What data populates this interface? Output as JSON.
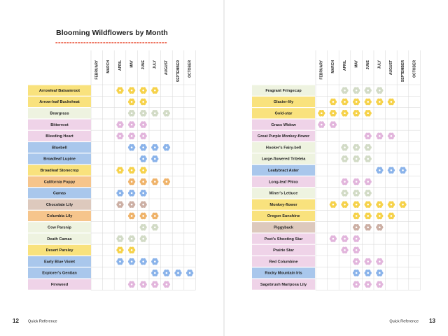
{
  "title": "Blooming Wildflowers by Month",
  "months": [
    "FEBRUARY",
    "MARCH",
    "APRIL",
    "MAY",
    "JUNE",
    "JULY",
    "AUGUST",
    "SEPTEMBER",
    "OCTOBER"
  ],
  "pages": [
    {
      "number": 12,
      "footer": "Quick Reference",
      "rows": [
        {
          "name": "Arrowleaf Balsamroot",
          "color": "#f9e27d",
          "flower_color": "#f6d24a",
          "bloom": [
            0,
            0,
            1,
            1,
            1,
            1,
            0,
            0,
            0
          ]
        },
        {
          "name": "Arrow-leaf Buckeheat",
          "color": "#f9e27d",
          "flower_color": "#f6d24a",
          "bloom": [
            0,
            0,
            0,
            1,
            1,
            0,
            0,
            0,
            0
          ]
        },
        {
          "name": "Beargrass",
          "color": "#eef3e0",
          "flower_color": "#d2dbc6",
          "bloom": [
            0,
            0,
            0,
            1,
            1,
            1,
            1,
            0,
            0
          ]
        },
        {
          "name": "Bitterroot",
          "color": "#efd3e8",
          "flower_color": "#e2b5dc",
          "bloom": [
            0,
            0,
            1,
            1,
            1,
            0,
            0,
            0,
            0
          ]
        },
        {
          "name": "Bleeding Heart",
          "color": "#efd3e8",
          "flower_color": "#e2b5dc",
          "bloom": [
            0,
            0,
            1,
            1,
            1,
            0,
            0,
            0,
            0
          ]
        },
        {
          "name": "Bluebell",
          "color": "#a9c7ec",
          "flower_color": "#8ab3ea",
          "bloom": [
            0,
            0,
            0,
            1,
            1,
            1,
            1,
            0,
            0
          ]
        },
        {
          "name": "Broadleaf Lupine",
          "color": "#a9c7ec",
          "flower_color": "#8ab3ea",
          "bloom": [
            0,
            0,
            0,
            0,
            1,
            1,
            0,
            0,
            0
          ]
        },
        {
          "name": "Broadleaf Stonecrop",
          "color": "#f9e27d",
          "flower_color": "#f6d24a",
          "bloom": [
            0,
            0,
            1,
            1,
            1,
            0,
            0,
            0,
            0
          ]
        },
        {
          "name": "California Poppy",
          "color": "#f6c58c",
          "flower_color": "#efb36a",
          "bloom": [
            0,
            0,
            0,
            1,
            1,
            1,
            1,
            0,
            0
          ]
        },
        {
          "name": "Camas",
          "color": "#a9c7ec",
          "flower_color": "#8ab3ea",
          "bloom": [
            0,
            0,
            1,
            1,
            1,
            0,
            0,
            0,
            0
          ]
        },
        {
          "name": "Chocolate Lily",
          "color": "#ddc9bd",
          "flower_color": "#ccafa4",
          "bloom": [
            0,
            0,
            1,
            1,
            1,
            0,
            0,
            0,
            0
          ]
        },
        {
          "name": "Columbia Lily",
          "color": "#f6c58c",
          "flower_color": "#efb36a",
          "bloom": [
            0,
            0,
            0,
            1,
            1,
            1,
            0,
            0,
            0
          ]
        },
        {
          "name": "Cow Parsnip",
          "color": "#eef3e0",
          "flower_color": "#d2dbc6",
          "bloom": [
            0,
            0,
            0,
            0,
            1,
            1,
            0,
            0,
            0
          ]
        },
        {
          "name": "Death Camas",
          "color": "#eef3e0",
          "flower_color": "#d2dbc6",
          "bloom": [
            0,
            0,
            1,
            1,
            1,
            0,
            0,
            0,
            0
          ]
        },
        {
          "name": "Desert Parsley",
          "color": "#f9e27d",
          "flower_color": "#f6d24a",
          "bloom": [
            0,
            0,
            1,
            1,
            0,
            0,
            0,
            0,
            0
          ]
        },
        {
          "name": "Early Blue Violet",
          "color": "#a9c7ec",
          "flower_color": "#8ab3ea",
          "bloom": [
            0,
            0,
            1,
            1,
            1,
            1,
            0,
            0,
            0
          ]
        },
        {
          "name": "Explorer's Gentian",
          "color": "#a9c7ec",
          "flower_color": "#8ab3ea",
          "bloom": [
            0,
            0,
            0,
            0,
            0,
            1,
            1,
            1,
            1
          ]
        },
        {
          "name": "Fireweed",
          "color": "#efd3e8",
          "flower_color": "#e2b5dc",
          "bloom": [
            0,
            0,
            0,
            1,
            1,
            1,
            1,
            0,
            0
          ]
        }
      ]
    },
    {
      "number": 13,
      "footer": "Quick Reference",
      "rows": [
        {
          "name": "Fragrant Fringecup",
          "color": "#eef3e0",
          "flower_color": "#d2dbc6",
          "bloom": [
            0,
            0,
            1,
            1,
            1,
            1,
            0,
            0,
            0
          ]
        },
        {
          "name": "Glacier-lily",
          "color": "#f9e27d",
          "flower_color": "#f6d24a",
          "bloom": [
            0,
            1,
            1,
            1,
            1,
            1,
            1,
            0,
            0
          ]
        },
        {
          "name": "Gold-star",
          "color": "#f9e27d",
          "flower_color": "#f6d24a",
          "bloom": [
            1,
            1,
            1,
            1,
            1,
            0,
            0,
            0,
            0
          ]
        },
        {
          "name": "Grass Widow",
          "color": "#efd3e8",
          "flower_color": "#e2b5dc",
          "bloom": [
            1,
            1,
            0,
            0,
            0,
            0,
            0,
            0,
            0
          ]
        },
        {
          "name": "Great Purple Monkey-flower",
          "color": "#efd3e8",
          "flower_color": "#e2b5dc",
          "bloom": [
            0,
            0,
            0,
            0,
            1,
            1,
            1,
            0,
            0
          ]
        },
        {
          "name": "Hooker's Fairy-bell",
          "color": "#eef3e0",
          "flower_color": "#d2dbc6",
          "bloom": [
            0,
            0,
            1,
            1,
            1,
            0,
            0,
            0,
            0
          ]
        },
        {
          "name": "Large-flowered Triteleia",
          "color": "#eef3e0",
          "flower_color": "#d2dbc6",
          "bloom": [
            0,
            0,
            1,
            1,
            1,
            0,
            0,
            0,
            0
          ]
        },
        {
          "name": "Leafybract Aster",
          "color": "#a9c7ec",
          "flower_color": "#8ab3ea",
          "bloom": [
            0,
            0,
            0,
            0,
            0,
            1,
            1,
            1,
            0
          ]
        },
        {
          "name": "Long-leaf Phlox",
          "color": "#efd3e8",
          "flower_color": "#e2b5dc",
          "bloom": [
            0,
            0,
            1,
            1,
            1,
            0,
            0,
            0,
            0
          ]
        },
        {
          "name": "Miner's Lettuce",
          "color": "#eef3e0",
          "flower_color": "#d2dbc6",
          "bloom": [
            0,
            0,
            1,
            1,
            1,
            0,
            0,
            0,
            0
          ]
        },
        {
          "name": "Monkey-flower",
          "color": "#f9e27d",
          "flower_color": "#f6d24a",
          "bloom": [
            0,
            1,
            1,
            1,
            1,
            1,
            1,
            1,
            0
          ]
        },
        {
          "name": "Oregon Sunshine",
          "color": "#f9e27d",
          "flower_color": "#f6d24a",
          "bloom": [
            0,
            0,
            0,
            1,
            1,
            1,
            1,
            0,
            0
          ]
        },
        {
          "name": "Piggyback",
          "color": "#ddc9bd",
          "flower_color": "#ccafa4",
          "bloom": [
            0,
            0,
            0,
            1,
            1,
            1,
            0,
            0,
            0
          ]
        },
        {
          "name": "Poet's Shooting Star",
          "color": "#efd3e8",
          "flower_color": "#e2b5dc",
          "bloom": [
            0,
            1,
            1,
            1,
            0,
            0,
            0,
            0,
            0
          ]
        },
        {
          "name": "Prairie Star",
          "color": "#efd3e8",
          "flower_color": "#e2b5dc",
          "bloom": [
            0,
            0,
            1,
            1,
            0,
            0,
            0,
            0,
            0
          ]
        },
        {
          "name": "Red Columbine",
          "color": "#efd3e8",
          "flower_color": "#e2b5dc",
          "bloom": [
            0,
            0,
            0,
            1,
            1,
            1,
            0,
            0,
            0
          ]
        },
        {
          "name": "Rocky Mountain Iris",
          "color": "#a9c7ec",
          "flower_color": "#8ab3ea",
          "bloom": [
            0,
            0,
            0,
            1,
            1,
            1,
            0,
            0,
            0
          ]
        },
        {
          "name": "Sagebrush Mariposa Lily",
          "color": "#efd3e8",
          "flower_color": "#e2b5dc",
          "bloom": [
            0,
            0,
            0,
            1,
            1,
            1,
            0,
            0,
            0
          ]
        }
      ]
    }
  ]
}
